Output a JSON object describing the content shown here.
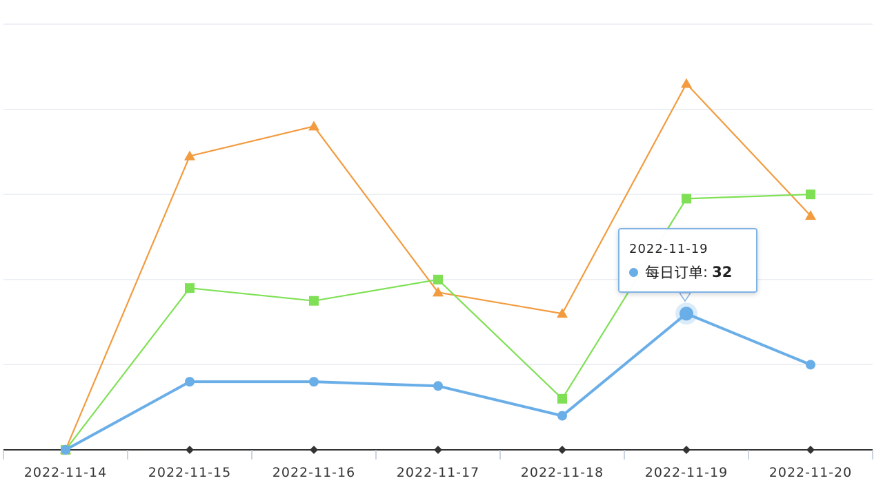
{
  "chart_data": {
    "type": "line",
    "categories": [
      "2022-11-14",
      "2022-11-15",
      "2022-11-16",
      "2022-11-17",
      "2022-11-18",
      "2022-11-19",
      "2022-11-20"
    ],
    "series": [
      {
        "name": "每日订单",
        "values": [
          0,
          16,
          16,
          15,
          8,
          32,
          20
        ],
        "color": "#6aaee8",
        "marker": "circle"
      },
      {
        "values": [
          0,
          38,
          35,
          40,
          12,
          59,
          60
        ],
        "color": "#7fe055",
        "marker": "square"
      },
      {
        "values": [
          0,
          69,
          76,
          37,
          32,
          86,
          55
        ],
        "color": "#f29b3f",
        "marker": "triangle"
      }
    ],
    "ylim": [
      0,
      100
    ],
    "grid": true,
    "tooltip": {
      "date": "2022-11-19",
      "series": "每日订单",
      "value": "32",
      "separator": ":"
    }
  }
}
